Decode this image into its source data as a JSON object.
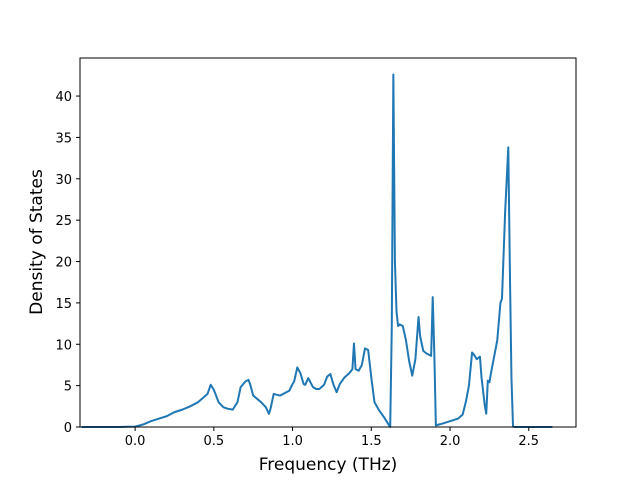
{
  "chart_data": {
    "type": "line",
    "title": "",
    "xlabel": "Frequency (THz)",
    "ylabel": "Density of States",
    "xlim": [
      -0.35,
      2.8
    ],
    "ylim": [
      0,
      44.6
    ],
    "grid": false,
    "line_color": "#1f77b4",
    "x_ticks": [
      0.0,
      0.5,
      1.0,
      1.5,
      2.0,
      2.5
    ],
    "x_tick_labels": [
      "0.0",
      "0.5",
      "1.0",
      "1.5",
      "2.0",
      "2.5"
    ],
    "y_ticks": [
      0,
      5,
      10,
      15,
      20,
      25,
      30,
      35,
      40
    ],
    "y_tick_labels": [
      "0",
      "5",
      "10",
      "15",
      "20",
      "25",
      "30",
      "35",
      "40"
    ],
    "series": [
      {
        "name": "",
        "x": [
          -0.34,
          -0.1,
          0.0,
          0.05,
          0.1,
          0.15,
          0.2,
          0.25,
          0.3,
          0.35,
          0.4,
          0.43,
          0.46,
          0.48,
          0.5,
          0.51,
          0.53,
          0.56,
          0.59,
          0.62,
          0.65,
          0.67,
          0.7,
          0.72,
          0.73,
          0.75,
          0.8,
          0.83,
          0.85,
          0.86,
          0.88,
          0.92,
          0.95,
          0.98,
          1.0,
          1.01,
          1.03,
          1.05,
          1.07,
          1.08,
          1.1,
          1.13,
          1.15,
          1.17,
          1.2,
          1.22,
          1.24,
          1.26,
          1.28,
          1.3,
          1.33,
          1.36,
          1.38,
          1.39,
          1.4,
          1.42,
          1.44,
          1.46,
          1.48,
          1.5,
          1.52,
          1.55,
          1.58,
          1.6,
          1.62,
          1.63,
          1.64,
          1.65,
          1.66,
          1.67,
          1.68,
          1.7,
          1.72,
          1.74,
          1.76,
          1.78,
          1.8,
          1.81,
          1.83,
          1.85,
          1.87,
          1.88,
          1.89,
          1.9,
          1.91,
          1.93,
          1.95,
          2.0,
          2.05,
          2.08,
          2.1,
          2.12,
          2.14,
          2.15,
          2.17,
          2.19,
          2.2,
          2.22,
          2.23,
          2.24,
          2.25,
          2.26,
          2.28,
          2.3,
          2.32,
          2.33,
          2.35,
          2.37,
          2.38,
          2.39,
          2.4,
          2.41,
          2.45,
          2.5,
          2.65
        ],
        "y": [
          0,
          0,
          0.05,
          0.3,
          0.7,
          1.0,
          1.3,
          1.8,
          2.1,
          2.5,
          3.0,
          3.5,
          4.0,
          5.1,
          4.5,
          4.0,
          3.0,
          2.4,
          2.2,
          2.1,
          3.0,
          4.8,
          5.5,
          5.7,
          5.2,
          3.8,
          3.0,
          2.4,
          1.6,
          2.2,
          4.0,
          3.8,
          4.1,
          4.4,
          5.2,
          5.5,
          7.2,
          6.5,
          5.2,
          5.1,
          5.9,
          4.8,
          4.6,
          4.6,
          5.1,
          6.1,
          6.4,
          5.1,
          4.2,
          5.2,
          6.0,
          6.5,
          7.0,
          10.1,
          7.0,
          6.8,
          7.5,
          9.5,
          9.3,
          6.0,
          3.0,
          2.0,
          1.2,
          0.6,
          0.0,
          12.0,
          42.6,
          20.0,
          14.0,
          12.2,
          12.4,
          12.2,
          10.5,
          8.0,
          6.2,
          8.2,
          13.3,
          11.0,
          9.2,
          8.9,
          8.7,
          8.6,
          15.7,
          9.0,
          0.2,
          0.3,
          0.4,
          0.7,
          1.0,
          1.5,
          3.0,
          5.0,
          9.0,
          8.8,
          8.2,
          8.5,
          6.0,
          2.7,
          1.6,
          5.6,
          5.4,
          6.5,
          8.5,
          10.5,
          15.0,
          15.5,
          26.0,
          33.8,
          19.0,
          6.0,
          0.05,
          0,
          0,
          0,
          0
        ]
      }
    ]
  }
}
